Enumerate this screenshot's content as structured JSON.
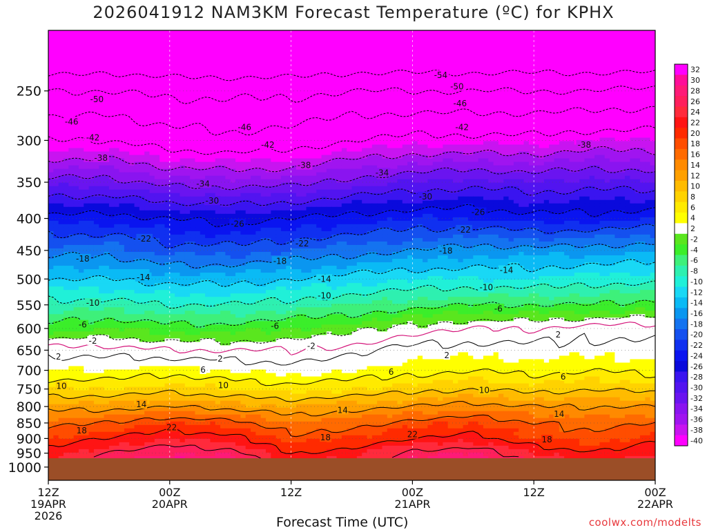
{
  "title": "2026041912 NAM3KM Forecast Temperature (ºC) for KPHX",
  "xlabel": "Forecast Time (UTC)",
  "credit": "coolwx.com/modelts",
  "colors": {
    "terrain": "#9b4e27",
    "warm_contour": "#000000",
    "cold_contour": "#000000",
    "freezing_line": "#d4147a",
    "grid": "#c8c8c8"
  },
  "chart_data": {
    "type": "heatmap",
    "title": "2026041912 NAM3KM Forecast Temperature (ºC) for KPHX",
    "xlabel": "Forecast Time (UTC)",
    "ylabel": "",
    "x_ticks": [
      {
        "hour": 0,
        "lines": [
          "12Z",
          "19APR",
          "2026"
        ]
      },
      {
        "hour": 12,
        "lines": [
          "00Z",
          "20APR"
        ]
      },
      {
        "hour": 24,
        "lines": [
          "12Z"
        ]
      },
      {
        "hour": 36,
        "lines": [
          "00Z",
          "21APR"
        ]
      },
      {
        "hour": 48,
        "lines": [
          "12Z"
        ]
      },
      {
        "hour": 60,
        "lines": [
          "00Z",
          "22APR"
        ]
      }
    ],
    "xlim": [
      0,
      60
    ],
    "y_ticks": [
      250,
      300,
      350,
      400,
      450,
      500,
      550,
      600,
      650,
      700,
      750,
      800,
      850,
      900,
      950,
      1000
    ],
    "ylim": [
      200,
      1050
    ],
    "y_scale": "log-pressure",
    "grid": true,
    "surface_pressure_hpa": 968,
    "colorbar_levels": [
      32,
      30,
      28,
      26,
      24,
      22,
      20,
      18,
      16,
      14,
      12,
      10,
      8,
      6,
      4,
      2,
      -2,
      -4,
      -6,
      -8,
      -10,
      -12,
      -14,
      -16,
      -18,
      -20,
      -22,
      -24,
      -26,
      -28,
      -30,
      -32,
      -34,
      -36,
      -38,
      -40
    ],
    "colorbar_colors": [
      "#ff00ff",
      "#ff0d99",
      "#ff1a77",
      "#ff1f5c",
      "#ff2a3c",
      "#ff1414",
      "#ff2a00",
      "#ff4d00",
      "#ff6a00",
      "#ff8a00",
      "#ffa000",
      "#ffbb00",
      "#ffd200",
      "#ffea00",
      "#ffff00",
      "#ffffff",
      "#5ae61e",
      "#3bee2a",
      "#3ef07a",
      "#2ef0b0",
      "#20f0d8",
      "#19d8f5",
      "#0abaf5",
      "#0a96f0",
      "#1473f0",
      "#1450ef",
      "#1030f0",
      "#0a14f0",
      "#0a0adc",
      "#3a14f0",
      "#5214f0",
      "#6a14f0",
      "#8a14f0",
      "#a014f0",
      "#c814f0",
      "#ff00ff"
    ],
    "temperature_profile": {
      "pressures": [
        230,
        250,
        300,
        350,
        400,
        450,
        500,
        550,
        600,
        650,
        700,
        750,
        800,
        850,
        900,
        950,
        968
      ],
      "hours": [
        0,
        6,
        12,
        18,
        24,
        30,
        36,
        42,
        48,
        54,
        60
      ],
      "values": [
        [
          -56,
          -55,
          -56,
          -56,
          -56,
          -55,
          -55,
          -55,
          -55,
          -55,
          -55
        ],
        [
          -50,
          -50,
          -51,
          -51,
          -51,
          -50,
          -50,
          -50,
          -50,
          -50,
          -49
        ],
        [
          -42,
          -42,
          -44,
          -45,
          -44,
          -42,
          -41,
          -41,
          -41,
          -40,
          -40
        ],
        [
          -33,
          -33,
          -35,
          -35,
          -35,
          -33,
          -32,
          -31,
          -32,
          -31,
          -32
        ],
        [
          -25,
          -25,
          -26,
          -27,
          -26,
          -25,
          -24,
          -24,
          -25,
          -25,
          -24
        ],
        [
          -19,
          -19,
          -21,
          -21,
          -20,
          -19,
          -18,
          -17,
          -17,
          -17,
          -16
        ],
        [
          -14,
          -14,
          -15,
          -15,
          -14,
          -13,
          -12,
          -12,
          -12,
          -11,
          -11
        ],
        [
          -9,
          -9,
          -10,
          -10,
          -9,
          -8,
          -7,
          -6,
          -6,
          -6,
          -5
        ],
        [
          -5,
          -4,
          -5,
          -5,
          -4,
          -3,
          -1,
          0,
          0,
          1,
          1
        ],
        [
          1,
          1,
          0,
          0,
          0,
          1,
          3,
          3,
          3,
          3,
          3
        ],
        [
          4,
          4,
          5,
          4,
          3,
          4,
          5,
          6,
          5,
          6,
          5
        ],
        [
          8,
          8,
          9,
          8,
          7,
          8,
          9,
          10,
          9,
          10,
          9
        ],
        [
          13,
          13,
          14,
          13,
          12,
          13,
          14,
          15,
          14,
          14,
          14
        ],
        [
          17,
          18,
          20,
          19,
          16,
          17,
          19,
          20,
          18,
          17,
          18
        ],
        [
          20,
          22,
          24,
          23,
          19,
          20,
          22,
          23,
          20,
          19,
          21
        ],
        [
          23,
          26,
          28,
          27,
          22,
          23,
          27,
          28,
          24,
          22,
          24
        ],
        [
          24,
          27,
          30,
          29,
          23,
          24,
          28,
          29,
          25,
          23,
          25
        ]
      ]
    },
    "contour_labels": [
      {
        "hour": 4.8,
        "p": 258,
        "text": "-50"
      },
      {
        "hour": 2.3,
        "p": 280,
        "text": "-46"
      },
      {
        "hour": 4.4,
        "p": 297,
        "text": "-42"
      },
      {
        "hour": 5.2,
        "p": 320,
        "text": "-38"
      },
      {
        "hour": 19.4,
        "p": 286,
        "text": "-46"
      },
      {
        "hour": 21.7,
        "p": 305,
        "text": "-42"
      },
      {
        "hour": 25.3,
        "p": 329,
        "text": "-38"
      },
      {
        "hour": 38.8,
        "p": 236,
        "text": "-54"
      },
      {
        "hour": 40.4,
        "p": 246,
        "text": "-50"
      },
      {
        "hour": 40.7,
        "p": 262,
        "text": "-46"
      },
      {
        "hour": 40.9,
        "p": 286,
        "text": "-42"
      },
      {
        "hour": 53.0,
        "p": 305,
        "text": "-38"
      },
      {
        "hour": 15.3,
        "p": 352,
        "text": "-34"
      },
      {
        "hour": 16.2,
        "p": 375,
        "text": "-30"
      },
      {
        "hour": 33.0,
        "p": 338,
        "text": "-34"
      },
      {
        "hour": 37.3,
        "p": 369,
        "text": "-30"
      },
      {
        "hour": 18.7,
        "p": 408,
        "text": "-26"
      },
      {
        "hour": 42.5,
        "p": 391,
        "text": "-26"
      },
      {
        "hour": 9.5,
        "p": 431,
        "text": "-22"
      },
      {
        "hour": 25.1,
        "p": 439,
        "text": "-22"
      },
      {
        "hour": 41.1,
        "p": 417,
        "text": "-22"
      },
      {
        "hour": 3.4,
        "p": 464,
        "text": "-18"
      },
      {
        "hour": 22.9,
        "p": 468,
        "text": "-18"
      },
      {
        "hour": 39.3,
        "p": 451,
        "text": "-18"
      },
      {
        "hour": 9.4,
        "p": 497,
        "text": "-14"
      },
      {
        "hour": 27.3,
        "p": 500,
        "text": "-14"
      },
      {
        "hour": 45.3,
        "p": 484,
        "text": "-14"
      },
      {
        "hour": 4.4,
        "p": 546,
        "text": "-10"
      },
      {
        "hour": 27.3,
        "p": 532,
        "text": "-10"
      },
      {
        "hour": 43.3,
        "p": 516,
        "text": "-10"
      },
      {
        "hour": 3.4,
        "p": 592,
        "text": "-6"
      },
      {
        "hour": 22.4,
        "p": 595,
        "text": "-6"
      },
      {
        "hour": 44.5,
        "p": 558,
        "text": "-6"
      },
      {
        "hour": 4.4,
        "p": 628,
        "text": "-2"
      },
      {
        "hour": 26.0,
        "p": 640,
        "text": "-2"
      },
      {
        "hour": 50.4,
        "p": 614,
        "text": "2"
      },
      {
        "hour": 1.0,
        "p": 666,
        "text": "2"
      },
      {
        "hour": 17.0,
        "p": 671,
        "text": "2"
      },
      {
        "hour": 39.4,
        "p": 663,
        "text": "2"
      },
      {
        "hour": 15.3,
        "p": 699,
        "text": "6"
      },
      {
        "hour": 33.9,
        "p": 704,
        "text": "6"
      },
      {
        "hour": 50.9,
        "p": 717,
        "text": "6"
      },
      {
        "hour": 1.3,
        "p": 742,
        "text": "10"
      },
      {
        "hour": 17.3,
        "p": 740,
        "text": "10"
      },
      {
        "hour": 43.1,
        "p": 753,
        "text": "10"
      },
      {
        "hour": 9.2,
        "p": 794,
        "text": "14"
      },
      {
        "hour": 29.1,
        "p": 811,
        "text": "14"
      },
      {
        "hour": 50.5,
        "p": 823,
        "text": "14"
      },
      {
        "hour": 3.3,
        "p": 874,
        "text": "18"
      },
      {
        "hour": 27.4,
        "p": 897,
        "text": "18"
      },
      {
        "hour": 49.3,
        "p": 904,
        "text": "18"
      },
      {
        "hour": 12.2,
        "p": 864,
        "text": "22"
      },
      {
        "hour": 36.0,
        "p": 887,
        "text": "22"
      }
    ]
  }
}
